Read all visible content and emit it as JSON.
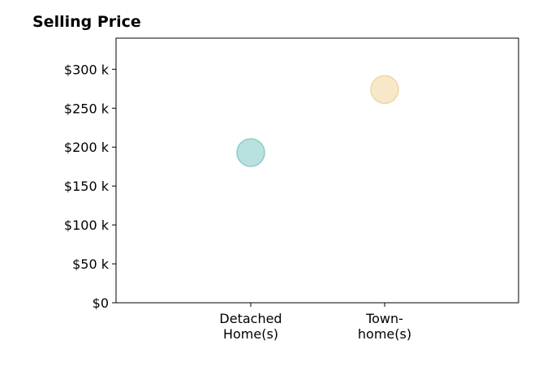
{
  "chart_data": {
    "type": "scatter",
    "title": "Selling Price",
    "xlabel": "",
    "ylabel": "",
    "categories": [
      [
        "Detached",
        "Home(s)"
      ],
      [
        "Town-",
        "home(s)"
      ]
    ],
    "values": [
      193000,
      274000
    ],
    "point_colors": [
      "#a8dad5",
      "#f6e2bb"
    ],
    "point_stroke_colors": [
      "#8fcdc6",
      "#f0d5a4"
    ],
    "ylim": [
      0,
      340000
    ],
    "yticks": [
      0,
      50000,
      100000,
      150000,
      200000,
      250000,
      300000
    ],
    "ytick_labels": [
      "$0",
      "$50 k",
      "$100 k",
      "$150 k",
      "$200 k",
      "$250 k",
      "$300 k"
    ],
    "grid": false,
    "legend": "none"
  }
}
